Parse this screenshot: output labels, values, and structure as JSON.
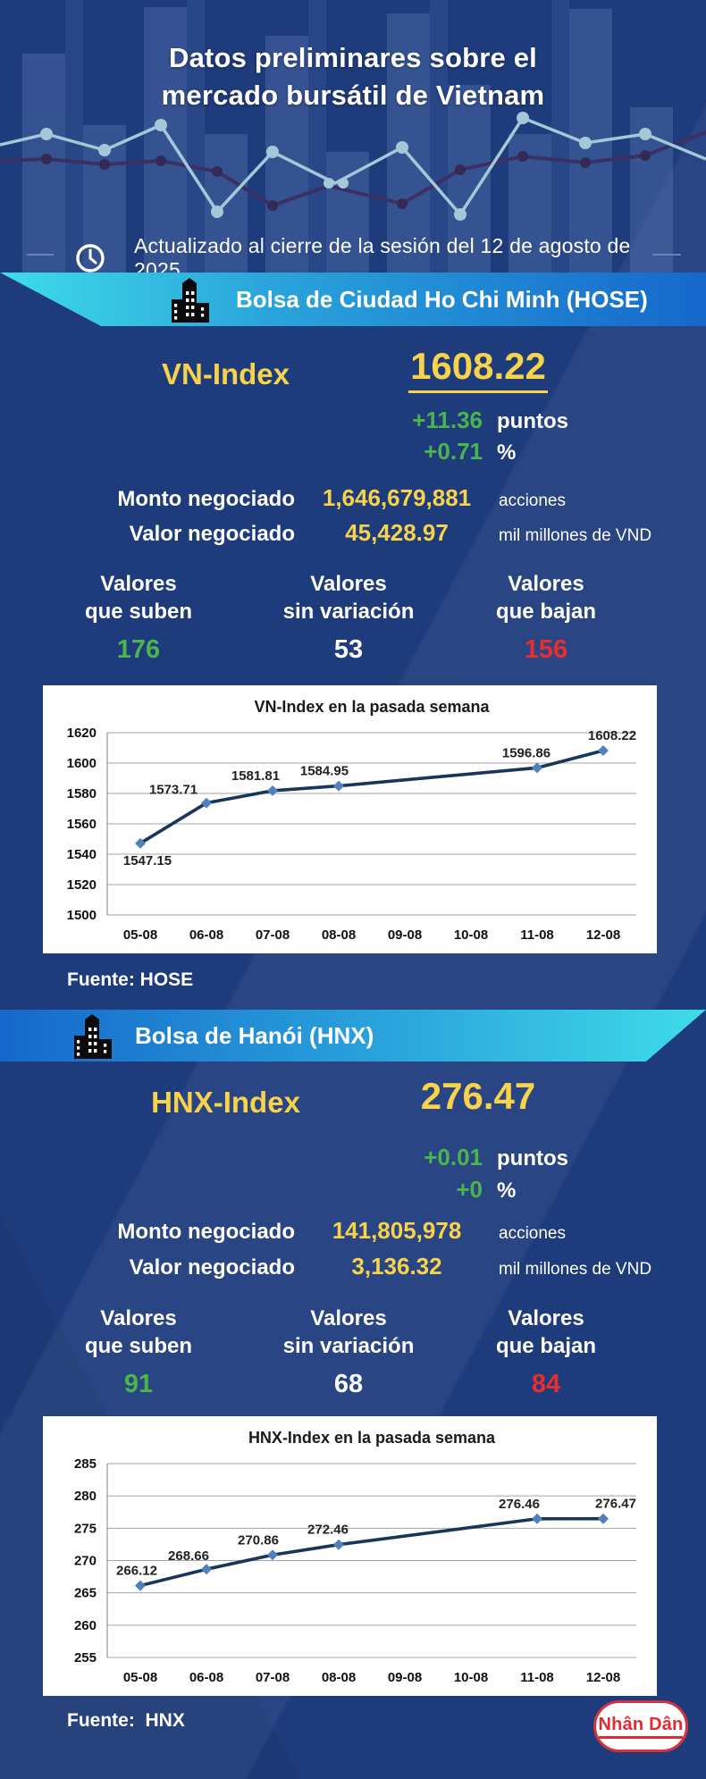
{
  "header": {
    "title_line1": "Datos preliminares sobre el",
    "title_line2": "mercado bursátil de Vietnam",
    "updated_text": "Actualizado al cierre de la sesión del 12 de agosto de 2025"
  },
  "hose": {
    "band_title": "Bolsa de Ciudad Ho Chi Minh (HOSE)",
    "index_label": "VN-Index",
    "index_value": "1608.22",
    "change_points": "+11.36",
    "change_points_unit": "puntos",
    "change_percent": "+0.71",
    "change_percent_unit": "%",
    "volume_label": "Monto negociado",
    "volume_value": "1,646,679,881",
    "volume_unit": "acciones",
    "value_label": "Valor negociado",
    "value_value": "45,428.97",
    "value_unit": "mil millones de VND",
    "breadth": [
      {
        "line1": "Valores",
        "line2": "que suben",
        "value": "176"
      },
      {
        "line1": "Valores",
        "line2": "sin variación",
        "value": "53"
      },
      {
        "line1": "Valores",
        "line2": "que bajan",
        "value": "156"
      }
    ],
    "source": "Fuente: HOSE"
  },
  "hnx": {
    "band_title": "Bolsa de Hanói (HNX)",
    "index_label": "HNX-Index",
    "index_value": "276.47",
    "change_points": "+0.01",
    "change_points_unit": "puntos",
    "change_percent": "+0",
    "change_percent_unit": "%",
    "volume_label": "Monto negociado",
    "volume_value": "141,805,978",
    "volume_unit": "acciones",
    "value_label": "Valor negociado",
    "value_value": "3,136.32",
    "value_unit": "mil millones de VND",
    "breadth": [
      {
        "line1": "Valores",
        "line2": "que suben",
        "value": "91"
      },
      {
        "line1": "Valores",
        "line2": "sin variación",
        "value": "68"
      },
      {
        "line1": "Valores",
        "line2": "que bajan",
        "value": "84"
      }
    ],
    "source": "Fuente:  HNX"
  },
  "footer": {
    "logo_text": "Nhân Dân"
  },
  "icons": {
    "clock": "clock-icon",
    "building": "building-icon"
  },
  "colors": {
    "bg": "#1e3b7c",
    "band-cyan": "#3edce9",
    "band-blue": "#1668cb",
    "yellow": "#f7d24b",
    "green": "#4ab54e",
    "red": "#ea2d2e",
    "chart-line": "#16365c",
    "chart-marker": "#4f81bd"
  },
  "chart_data": [
    {
      "type": "line",
      "title": "VN-Index en la pasada semana",
      "categories": [
        "05-08",
        "06-08",
        "07-08",
        "08-08",
        "09-08",
        "10-08",
        "11-08",
        "12-08"
      ],
      "values": [
        1547.15,
        1573.71,
        1581.81,
        1584.95,
        null,
        null,
        1596.86,
        1608.22
      ],
      "ylim": [
        1500,
        1620
      ],
      "ytick_step": 20,
      "grid": true,
      "legend": "none",
      "xlabel": "",
      "ylabel": ""
    },
    {
      "type": "line",
      "title": "HNX-Index en la pasada semana",
      "categories": [
        "05-08",
        "06-08",
        "07-08",
        "08-08",
        "09-08",
        "10-08",
        "11-08",
        "12-08"
      ],
      "values": [
        266.12,
        268.66,
        270.86,
        272.46,
        null,
        null,
        276.46,
        276.47
      ],
      "ylim": [
        255,
        285
      ],
      "ytick_step": 5,
      "grid": true,
      "legend": "none",
      "xlabel": "",
      "ylabel": ""
    }
  ]
}
